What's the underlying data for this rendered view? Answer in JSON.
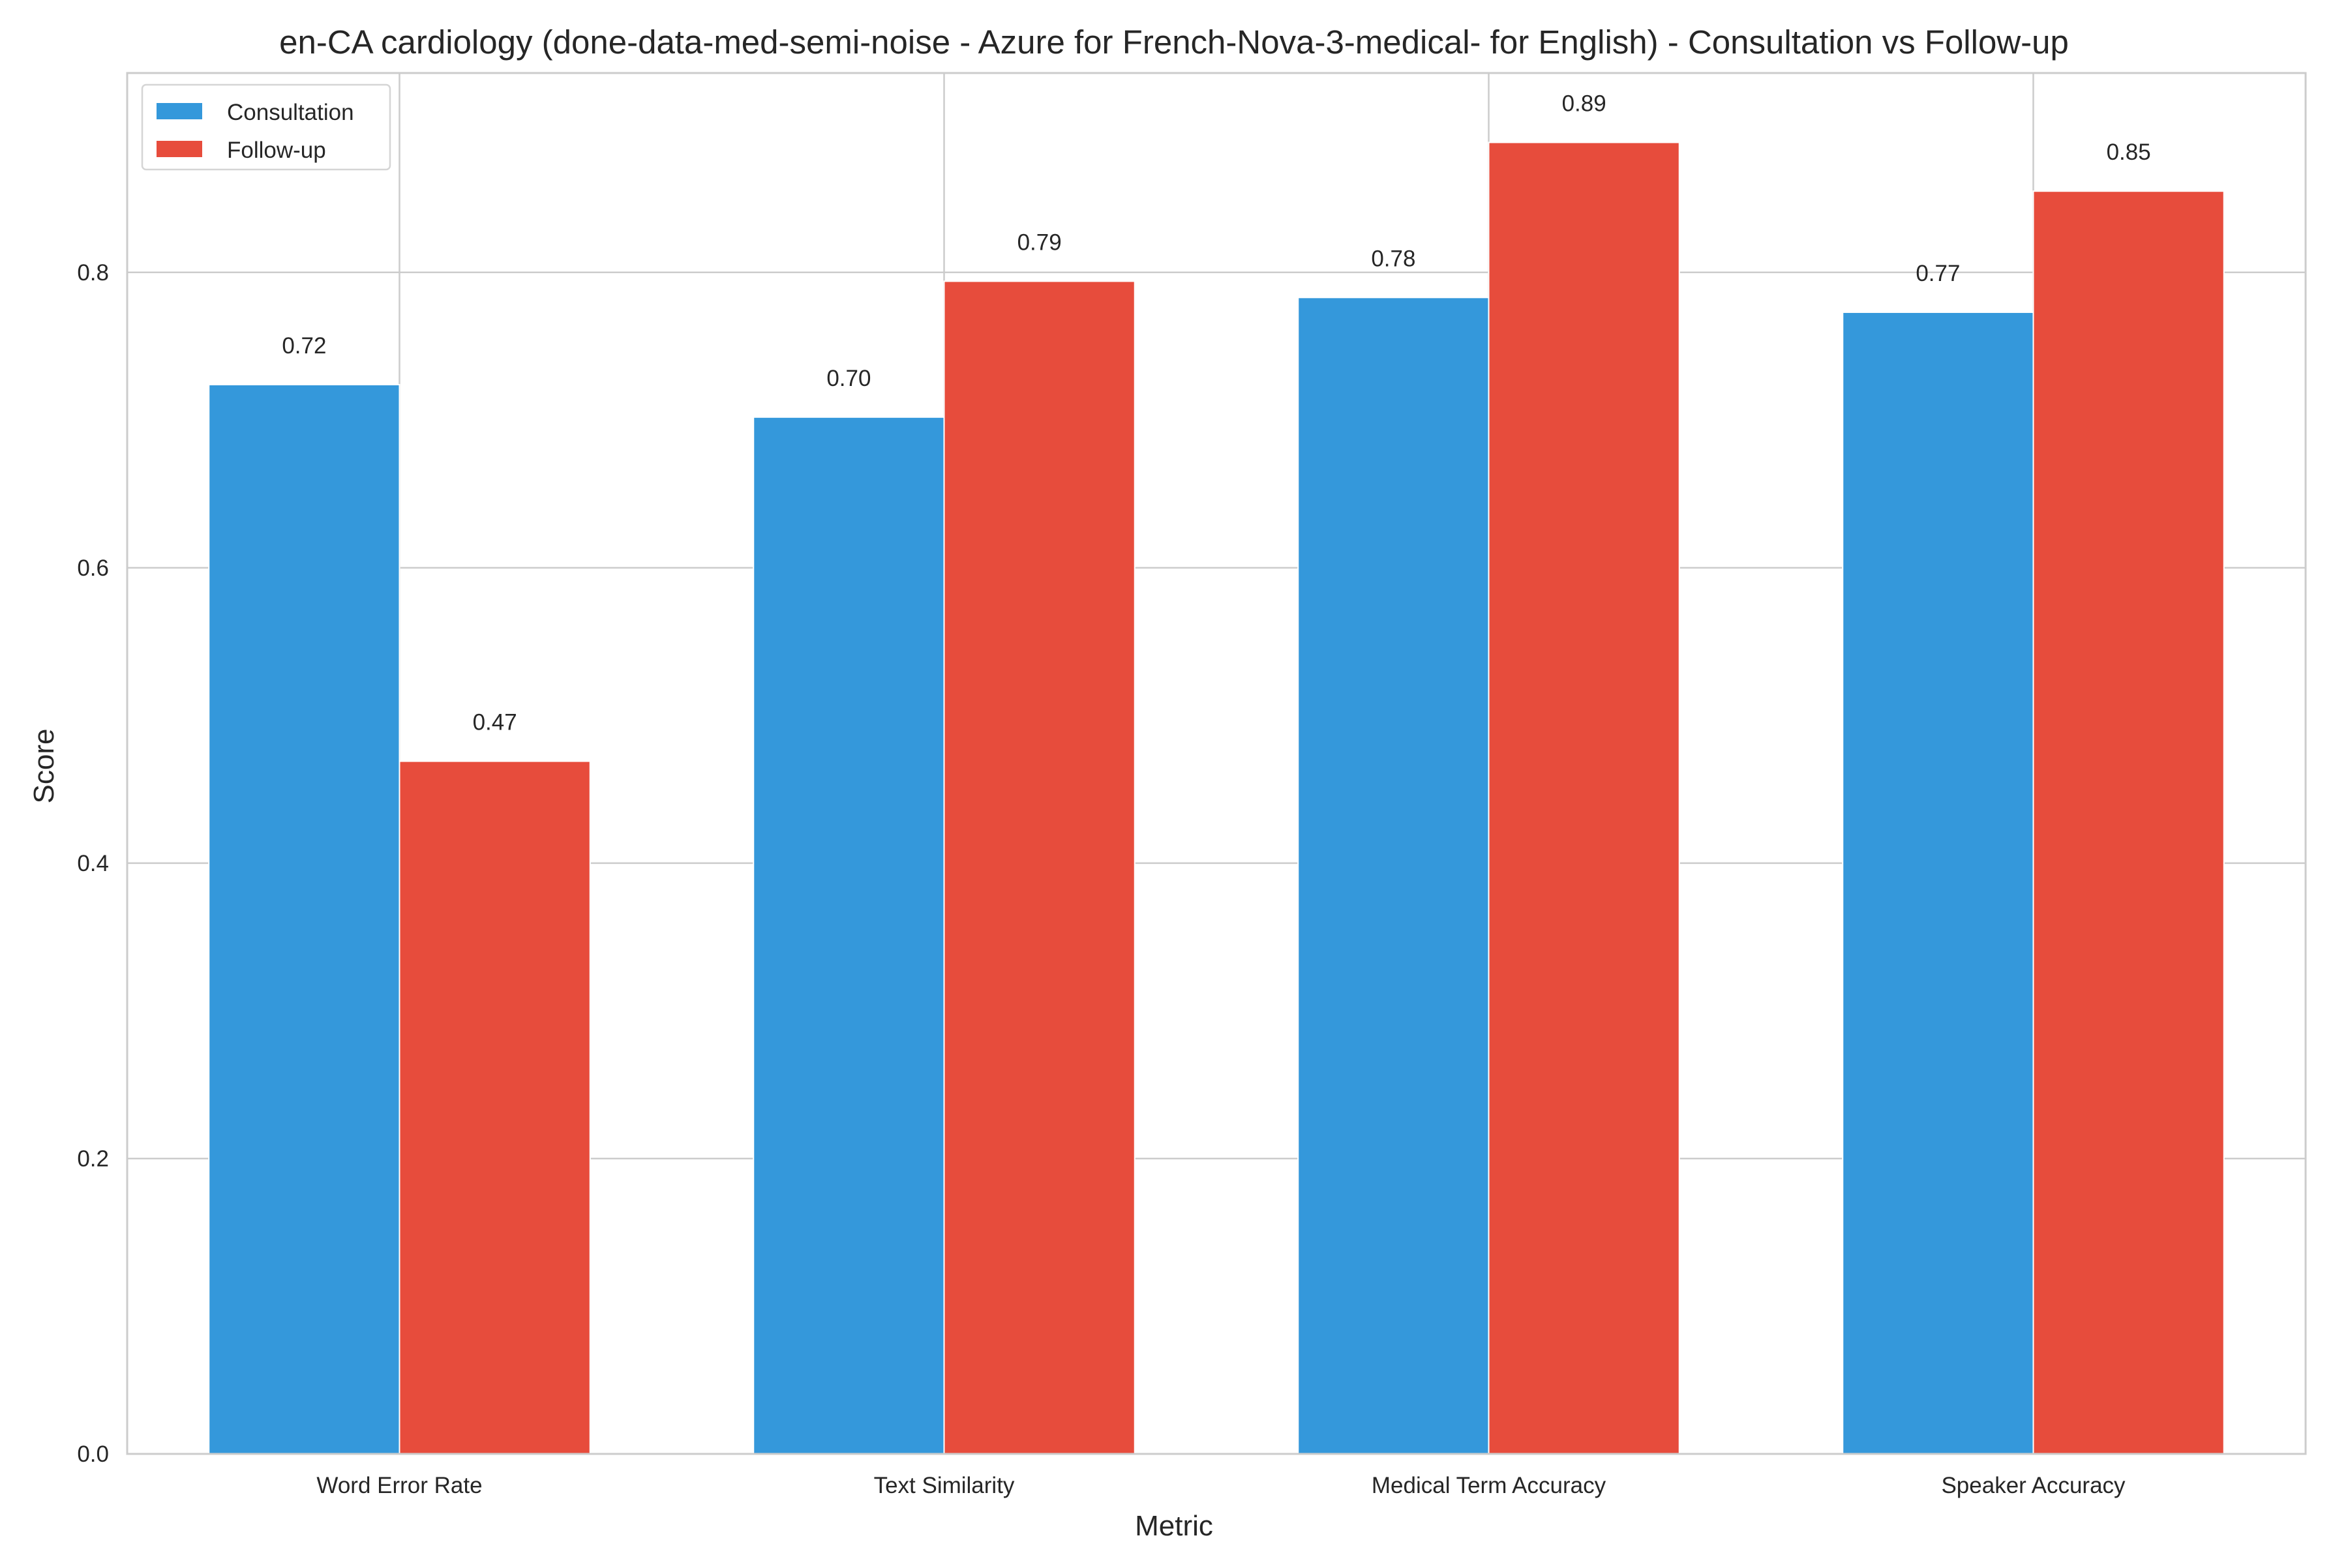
{
  "chart_data": {
    "type": "bar",
    "title": "en-CA cardiology (done-data-med-semi-noise - Azure for French-Nova-3-medical- for English) - Consultation vs Follow-up",
    "xlabel": "Metric",
    "ylabel": "Score",
    "ylim": [
      0,
      0.935
    ],
    "yticks": [
      0.0,
      0.2,
      0.4,
      0.6,
      0.8
    ],
    "ytick_labels": [
      "0.0",
      "0.2",
      "0.4",
      "0.6",
      "0.8"
    ],
    "grid": true,
    "legend_position": "top-left",
    "categories": [
      "Word Error Rate",
      "Text Similarity",
      "Medical Term Accuracy",
      "Speaker Accuracy"
    ],
    "series": [
      {
        "name": "Consultation",
        "color": "#3498db",
        "values": [
          0.724,
          0.702,
          0.783,
          0.773
        ],
        "labels": [
          "0.72",
          "0.70",
          "0.78",
          "0.77"
        ]
      },
      {
        "name": "Follow-up",
        "color": "#e74c3c",
        "values": [
          0.469,
          0.794,
          0.888,
          0.855
        ],
        "labels": [
          "0.47",
          "0.79",
          "0.89",
          "0.85"
        ]
      }
    ]
  }
}
